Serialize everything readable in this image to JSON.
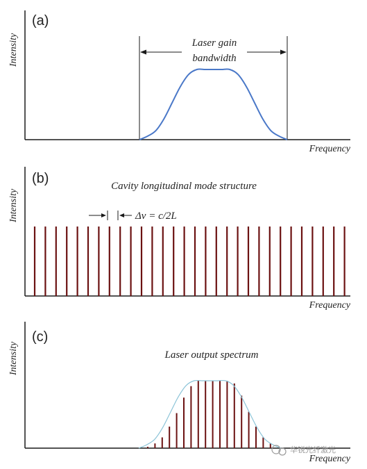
{
  "panels": [
    {
      "label": "(a)",
      "ylabel": "Intensity",
      "xlabel": "Frequency",
      "annotation_line1": "Laser gain",
      "annotation_line2": "bandwidth"
    },
    {
      "label": "(b)",
      "ylabel": "Intensity",
      "xlabel": "Frequency",
      "caption": "Cavity longitudinal mode structure",
      "spacing_label": "Δν = c/2L"
    },
    {
      "label": "(c)",
      "ylabel": "Intensity",
      "xlabel": "Frequency",
      "caption": "Laser output spectrum"
    }
  ],
  "watermark": "华锐光纤激光",
  "colors": {
    "gain_curve": "#4a78c8",
    "envelope": "#8cc4d8",
    "mode_lines": "#6b1111",
    "axis": "#1a1a1a"
  },
  "chart_data": {
    "type": "line",
    "mode_count": 30,
    "gain_profile_relative": [
      0,
      0.05,
      0.13,
      0.3,
      0.53,
      0.76,
      0.93,
      1,
      1,
      1,
      1,
      1,
      0.93,
      0.76,
      0.53,
      0.3,
      0.13,
      0.05,
      0
    ],
    "output_mode_heights_relative": [
      0.02,
      0.07,
      0.16,
      0.32,
      0.52,
      0.75,
      0.92,
      1,
      1,
      1,
      1,
      1,
      0.96,
      0.78,
      0.54,
      0.32,
      0.16,
      0.07
    ],
    "axis_ranges": "unlabeled",
    "grid": false
  }
}
